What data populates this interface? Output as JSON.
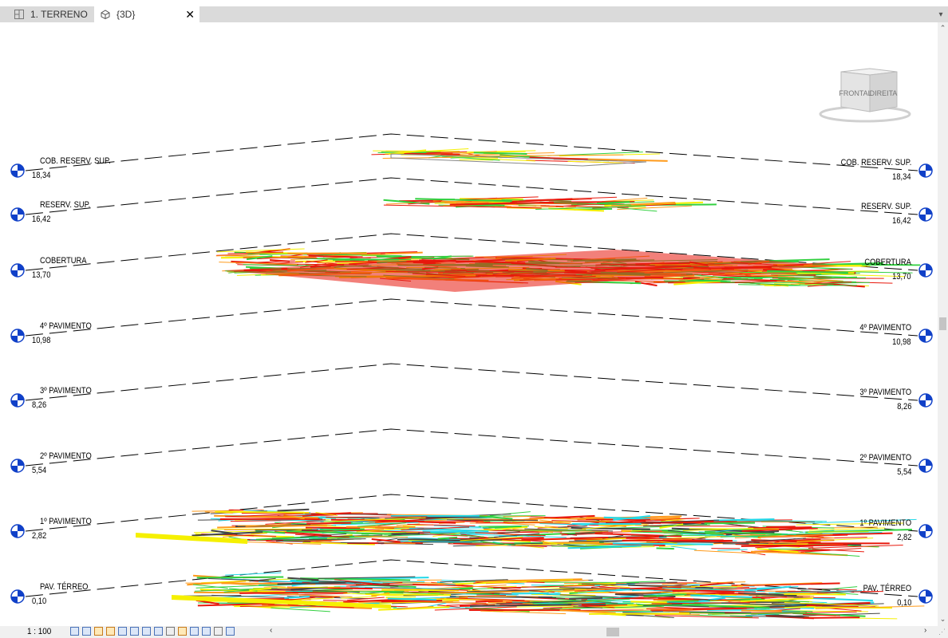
{
  "tabs": [
    {
      "label": "1. TERRENO",
      "icon": "floor-plan-icon",
      "active": false
    },
    {
      "label": "{3D}",
      "icon": "3d-view-icon",
      "active": true,
      "close": "✕"
    }
  ],
  "viewcube": {
    "front": "FRONTAL",
    "right": "DIREITA"
  },
  "levels": [
    {
      "name": "COB. RESERV. SUP.",
      "elevation": "18,34"
    },
    {
      "name": "RESERV. SUP.",
      "elevation": "16,42"
    },
    {
      "name": "COBERTURA",
      "elevation": "13,70"
    },
    {
      "name": "4º PAVIMENTO",
      "elevation": "10,98"
    },
    {
      "name": "3º PAVIMENTO",
      "elevation": "8,26"
    },
    {
      "name": "2º PAVIMENTO",
      "elevation": "5,54"
    },
    {
      "name": "1º PAVIMENTO",
      "elevation": "2,82"
    },
    {
      "name": "PAV. TÉRREO",
      "elevation": "0,10"
    }
  ],
  "status": {
    "scale": "1 : 100"
  },
  "colors": {
    "level_head": "#1040c8",
    "floor_red": "#e8180c",
    "floor_green": "#32d040",
    "floor_yellow": "#f5f000",
    "floor_orange": "#ff9a1a",
    "floor_cyan": "#22d8e8"
  }
}
